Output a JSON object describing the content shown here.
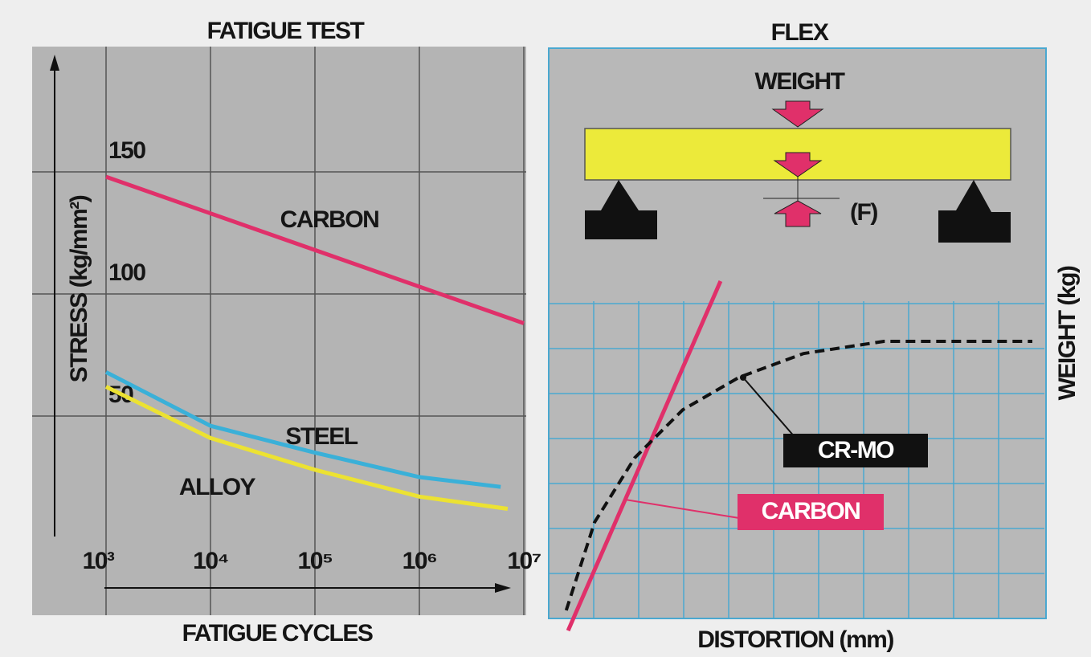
{
  "chart_data": [
    {
      "type": "line",
      "title": "FATIGUE TEST",
      "x_label": "FATIGUE CYCLES",
      "y_label": "STRESS (kg/mm²)",
      "xscale": "log",
      "grid": true,
      "xlim": [
        1000,
        10000000
      ],
      "xticks": [
        {
          "value": 1000,
          "label": "10³"
        },
        {
          "value": 10000,
          "label": "10⁴"
        },
        {
          "value": 100000,
          "label": "10⁵"
        },
        {
          "value": 1000000,
          "label": "10⁶"
        },
        {
          "value": 10000000,
          "label": "10⁷"
        }
      ],
      "ylim": [
        0,
        200
      ],
      "yticks": [
        50,
        100,
        150
      ],
      "series": [
        {
          "name": "CARBON",
          "color": "#e0306a",
          "x": [
            1000,
            10000000
          ],
          "values": [
            148,
            88
          ]
        },
        {
          "name": "STEEL",
          "color": "#3ab0d8",
          "x": [
            1000,
            10000,
            100000,
            1000000,
            6000000
          ],
          "values": [
            68,
            46,
            35,
            25,
            21
          ]
        },
        {
          "name": "ALLOY",
          "color": "#ece232",
          "x": [
            1000,
            10000,
            100000,
            1000000,
            7000000
          ],
          "values": [
            62,
            41,
            28,
            17,
            12
          ]
        }
      ]
    },
    {
      "type": "line",
      "title": "FLEX",
      "x_label": "DISTORTION (mm)",
      "y_label": "WEIGHT (kg)",
      "diagram_labels": [
        "WEIGHT",
        "(F)"
      ],
      "grid": true,
      "xlim": [
        0,
        11
      ],
      "xticks": [
        1,
        2,
        3,
        4,
        5,
        6,
        7,
        8,
        9,
        10
      ],
      "ylim": [
        0,
        7
      ],
      "yticks": [
        0,
        1,
        2,
        3,
        4,
        5,
        6,
        7
      ],
      "series": [
        {
          "name": "CARBON",
          "color": "#e0306a",
          "style": "solid",
          "x": [
            0.43,
            3.82
          ],
          "values": [
            -0.27,
            7.5
          ]
        },
        {
          "name": "CR-MO",
          "color": "#111111",
          "style": "dashed",
          "x": [
            0.39,
            1.02,
            1.91,
            2.98,
            4.23,
            5.66,
            7.45,
            10.75
          ],
          "values": [
            0.18,
            2.14,
            3.57,
            4.64,
            5.36,
            5.89,
            6.16,
            6.16
          ]
        }
      ]
    }
  ]
}
